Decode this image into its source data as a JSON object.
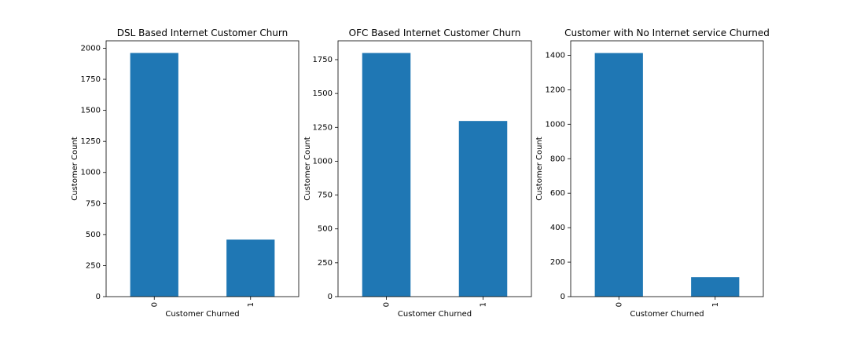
{
  "colors": {
    "bar": "#1f77b4",
    "axis": "#000000",
    "background": "#ffffff"
  },
  "chart_data": [
    {
      "type": "bar",
      "title": "DSL Based Internet Customer Churn",
      "xlabel": "Customer Churned",
      "ylabel": "Customer Count",
      "categories": [
        "0",
        "1"
      ],
      "values": [
        1962,
        459
      ],
      "ylim": [
        0,
        2060
      ],
      "yticks": [
        0,
        250,
        500,
        750,
        1000,
        1250,
        1500,
        1750,
        2000
      ],
      "grid": false
    },
    {
      "type": "bar",
      "title": "OFC Based Internet Customer Churn",
      "xlabel": "Customer Churned",
      "ylabel": "Customer Count",
      "categories": [
        "0",
        "1"
      ],
      "values": [
        1799,
        1297
      ],
      "ylim": [
        0,
        1889
      ],
      "yticks": [
        0,
        250,
        500,
        750,
        1000,
        1250,
        1500,
        1750
      ],
      "grid": false
    },
    {
      "type": "bar",
      "title": "Customer with No Internet service Churned",
      "xlabel": "Customer Churned",
      "ylabel": "Customer Count",
      "categories": [
        "0",
        "1"
      ],
      "values": [
        1413,
        113
      ],
      "ylim": [
        0,
        1484
      ],
      "yticks": [
        0,
        200,
        400,
        600,
        800,
        1000,
        1200,
        1400
      ],
      "grid": false
    }
  ]
}
